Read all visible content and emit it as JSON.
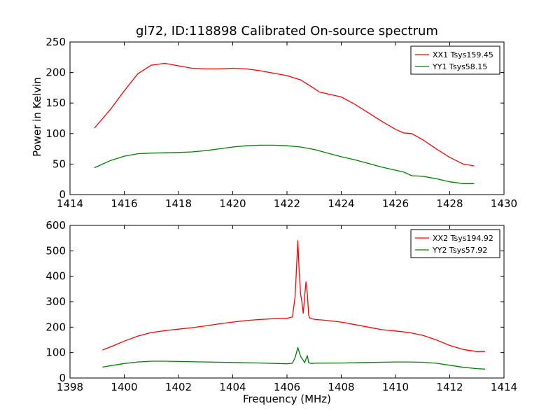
{
  "title": "gl72, ID:118898 Calibrated On-source spectrum",
  "xlabel": "Frequency (MHz)",
  "ylabel": "Power in Kelvin",
  "chart_data": [
    {
      "type": "line",
      "xlim": [
        1414,
        1430
      ],
      "ylim": [
        0,
        250
      ],
      "xticks": [
        "1414",
        "1416",
        "1418",
        "1420",
        "1422",
        "1424",
        "1426",
        "1428",
        "1430"
      ],
      "yticks": [
        "0",
        "50",
        "100",
        "150",
        "200",
        "250"
      ],
      "legend": "top-right",
      "series": [
        {
          "name": "XX1 Tsys159.45",
          "color": "#ff0000",
          "x": [
            1414.9,
            1415.5,
            1416.0,
            1416.5,
            1417.0,
            1417.5,
            1418.0,
            1418.5,
            1419.0,
            1419.5,
            1420.0,
            1420.5,
            1421.0,
            1421.5,
            1422.0,
            1422.5,
            1423.0,
            1423.2,
            1423.5,
            1424.0,
            1424.5,
            1425.0,
            1425.5,
            1426.0,
            1426.3,
            1426.6,
            1427.0,
            1427.5,
            1428.0,
            1428.5,
            1428.9
          ],
          "y": [
            109,
            140,
            170,
            198,
            212,
            215,
            211,
            207,
            206,
            206,
            207,
            206,
            203,
            199,
            195,
            188,
            174,
            168,
            165,
            160,
            148,
            134,
            120,
            107,
            101,
            100,
            90,
            75,
            61,
            50,
            47
          ]
        },
        {
          "name": "YY1 Tsys58.15",
          "color": "#008000",
          "x": [
            1414.9,
            1415.5,
            1416.0,
            1416.5,
            1417.0,
            1417.5,
            1418.0,
            1418.5,
            1419.0,
            1419.5,
            1420.0,
            1420.5,
            1421.0,
            1421.5,
            1422.0,
            1422.5,
            1423.0,
            1423.5,
            1424.0,
            1424.5,
            1425.0,
            1425.5,
            1426.0,
            1426.3,
            1426.6,
            1427.0,
            1427.5,
            1428.0,
            1428.5,
            1428.9
          ],
          "y": [
            44,
            56,
            63,
            67,
            68,
            68.5,
            69,
            70,
            72,
            75,
            78,
            80,
            81,
            81,
            80,
            78,
            74,
            68,
            62,
            57,
            51,
            45,
            40,
            37,
            31,
            30,
            26,
            21,
            18,
            18
          ]
        }
      ]
    },
    {
      "type": "line",
      "xlim": [
        1398,
        1414
      ],
      "ylim": [
        0,
        600
      ],
      "xticks": [
        "1398",
        "1400",
        "1402",
        "1404",
        "1406",
        "1408",
        "1410",
        "1412",
        "1414"
      ],
      "yticks": [
        "0",
        "100",
        "200",
        "300",
        "400",
        "500",
        "600"
      ],
      "legend": "top-right",
      "series": [
        {
          "name": "XX2 Tsys194.92",
          "color": "#ff0000",
          "x": [
            1399.2,
            1399.6,
            1400.0,
            1400.5,
            1401.0,
            1401.5,
            1402.0,
            1402.5,
            1403.0,
            1403.5,
            1404.0,
            1404.5,
            1405.0,
            1405.5,
            1406.0,
            1406.2,
            1406.3,
            1406.4,
            1406.45,
            1406.5,
            1406.55,
            1406.6,
            1406.65,
            1406.7,
            1406.75,
            1406.8,
            1406.85,
            1406.9,
            1407.0,
            1407.5,
            1408.0,
            1408.5,
            1409.0,
            1409.5,
            1410.0,
            1410.5,
            1411.0,
            1411.5,
            1412.0,
            1412.5,
            1413.0,
            1413.3
          ],
          "y": [
            110,
            127,
            145,
            165,
            179,
            186,
            192,
            198,
            205,
            213,
            220,
            226,
            230,
            233,
            235,
            240,
            320,
            540,
            420,
            330,
            300,
            255,
            320,
            378,
            330,
            245,
            235,
            233,
            231,
            226,
            220,
            210,
            200,
            190,
            185,
            179,
            168,
            150,
            128,
            112,
            104,
            104
          ]
        },
        {
          "name": "YY2 Tsys57.92",
          "color": "#008000",
          "x": [
            1399.2,
            1399.6,
            1400.0,
            1400.5,
            1401.0,
            1401.5,
            1402.0,
            1403.0,
            1404.0,
            1405.0,
            1406.0,
            1406.2,
            1406.3,
            1406.4,
            1406.5,
            1406.6,
            1406.65,
            1406.7,
            1406.75,
            1406.8,
            1406.9,
            1407.0,
            1408.0,
            1409.0,
            1410.0,
            1410.5,
            1411.0,
            1411.5,
            1412.0,
            1412.5,
            1413.0,
            1413.3
          ],
          "y": [
            43,
            50,
            57,
            63,
            66,
            66,
            65,
            63,
            61,
            59,
            56,
            58,
            80,
            120,
            85,
            70,
            60,
            75,
            88,
            60,
            57,
            58,
            59,
            61,
            63,
            63,
            62,
            58,
            50,
            42,
            37,
            35
          ]
        }
      ]
    }
  ]
}
